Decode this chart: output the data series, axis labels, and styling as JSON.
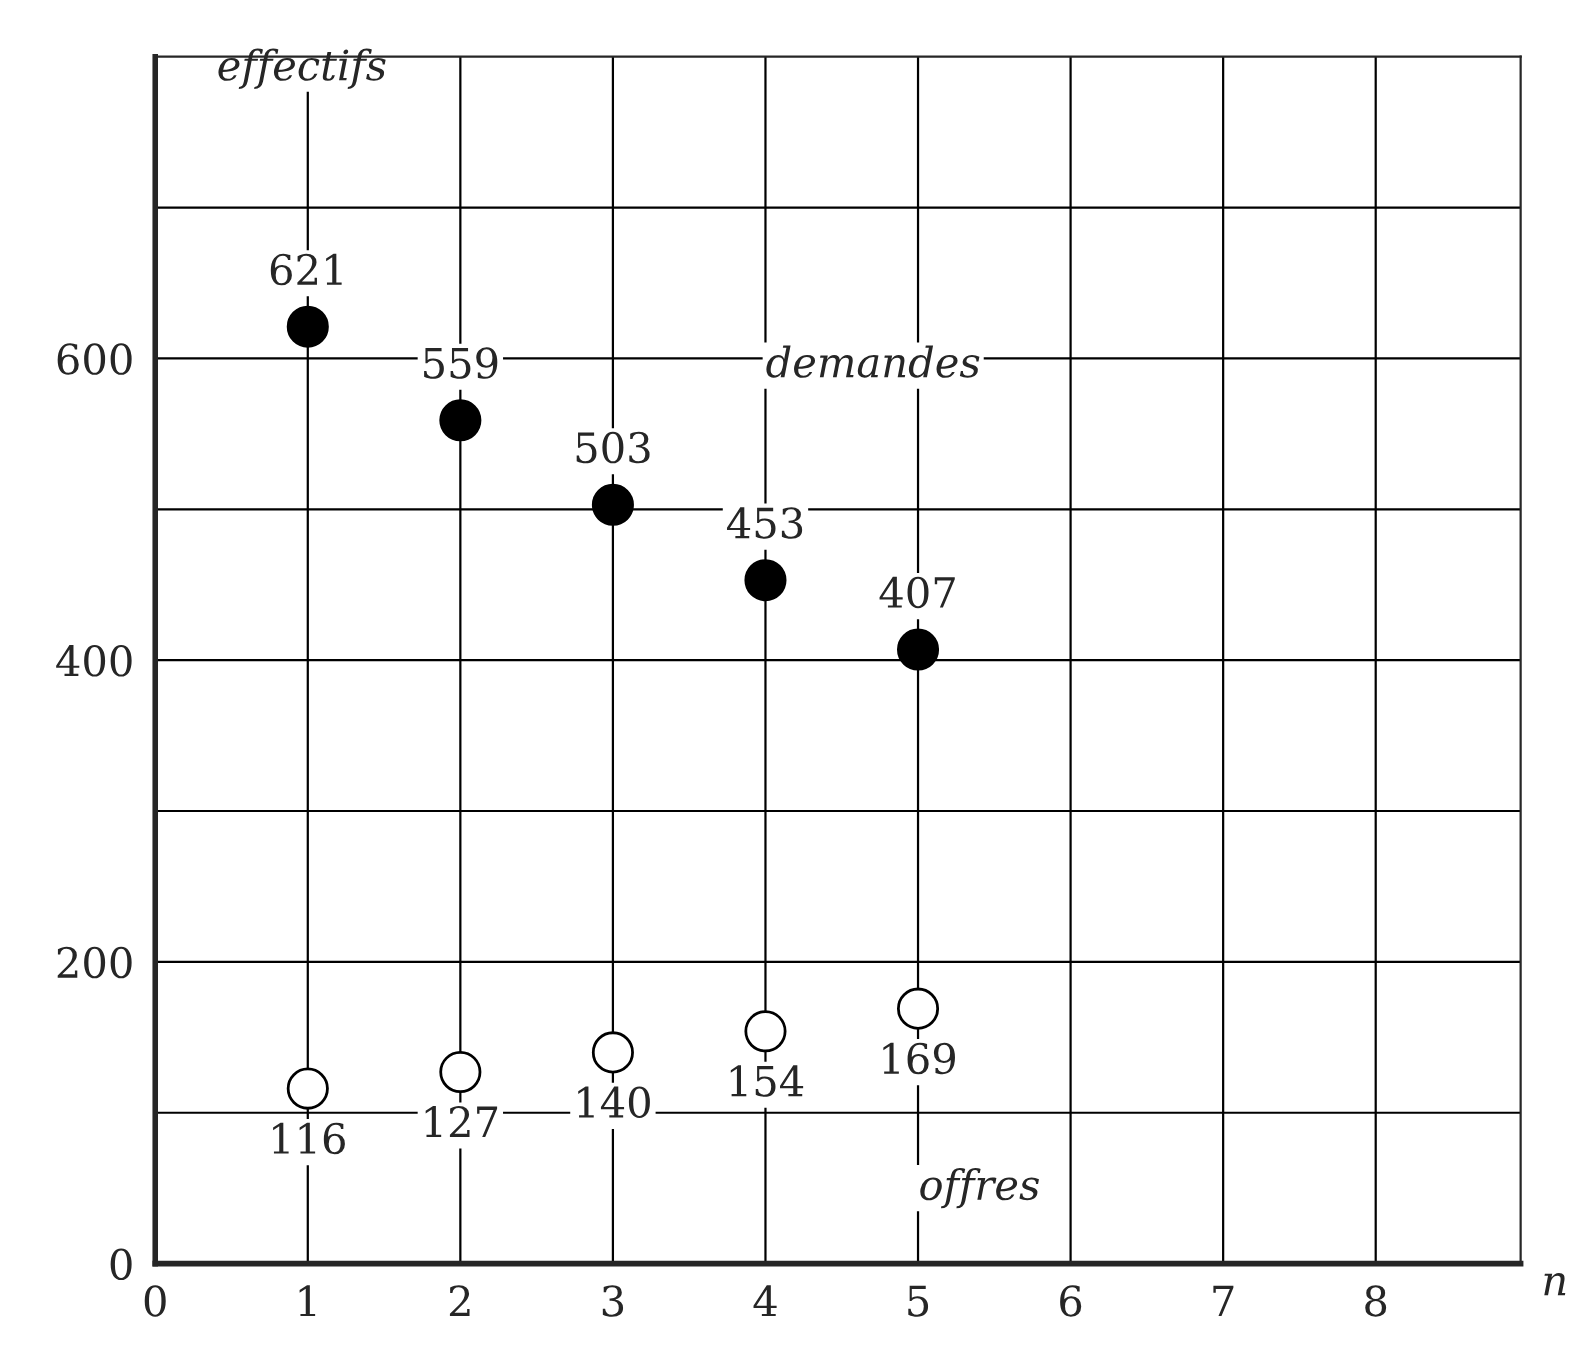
{
  "chart_data": {
    "type": "scatter",
    "xlabel": "n",
    "ylabel": "effectifs",
    "x": [
      1,
      2,
      3,
      4,
      5
    ],
    "series": [
      {
        "color": "#000000",
        "values": [
          621,
          559,
          503,
          453,
          407
        ]
      },
      {
        "color": "#ffffff",
        "values": [
          116,
          127,
          140,
          154,
          169
        ]
      }
    ],
    "annotations": [
      "demandes",
      "offres"
    ],
    "xlim": [
      0,
      8.95
    ],
    "ylim": [
      0,
      800
    ],
    "xticks": [
      0,
      1,
      2,
      3,
      4,
      5,
      6,
      7,
      8
    ],
    "yticks": [
      0,
      {
        "value": 100,
        "label": null
      },
      200,
      {
        "value": 300,
        "label": null
      },
      400,
      {
        "value": 500,
        "label": null
      },
      600,
      {
        "value": 700,
        "label": null
      }
    ],
    "grid": true,
    "marker": "circle",
    "data_labels": true,
    "legend": false
  }
}
